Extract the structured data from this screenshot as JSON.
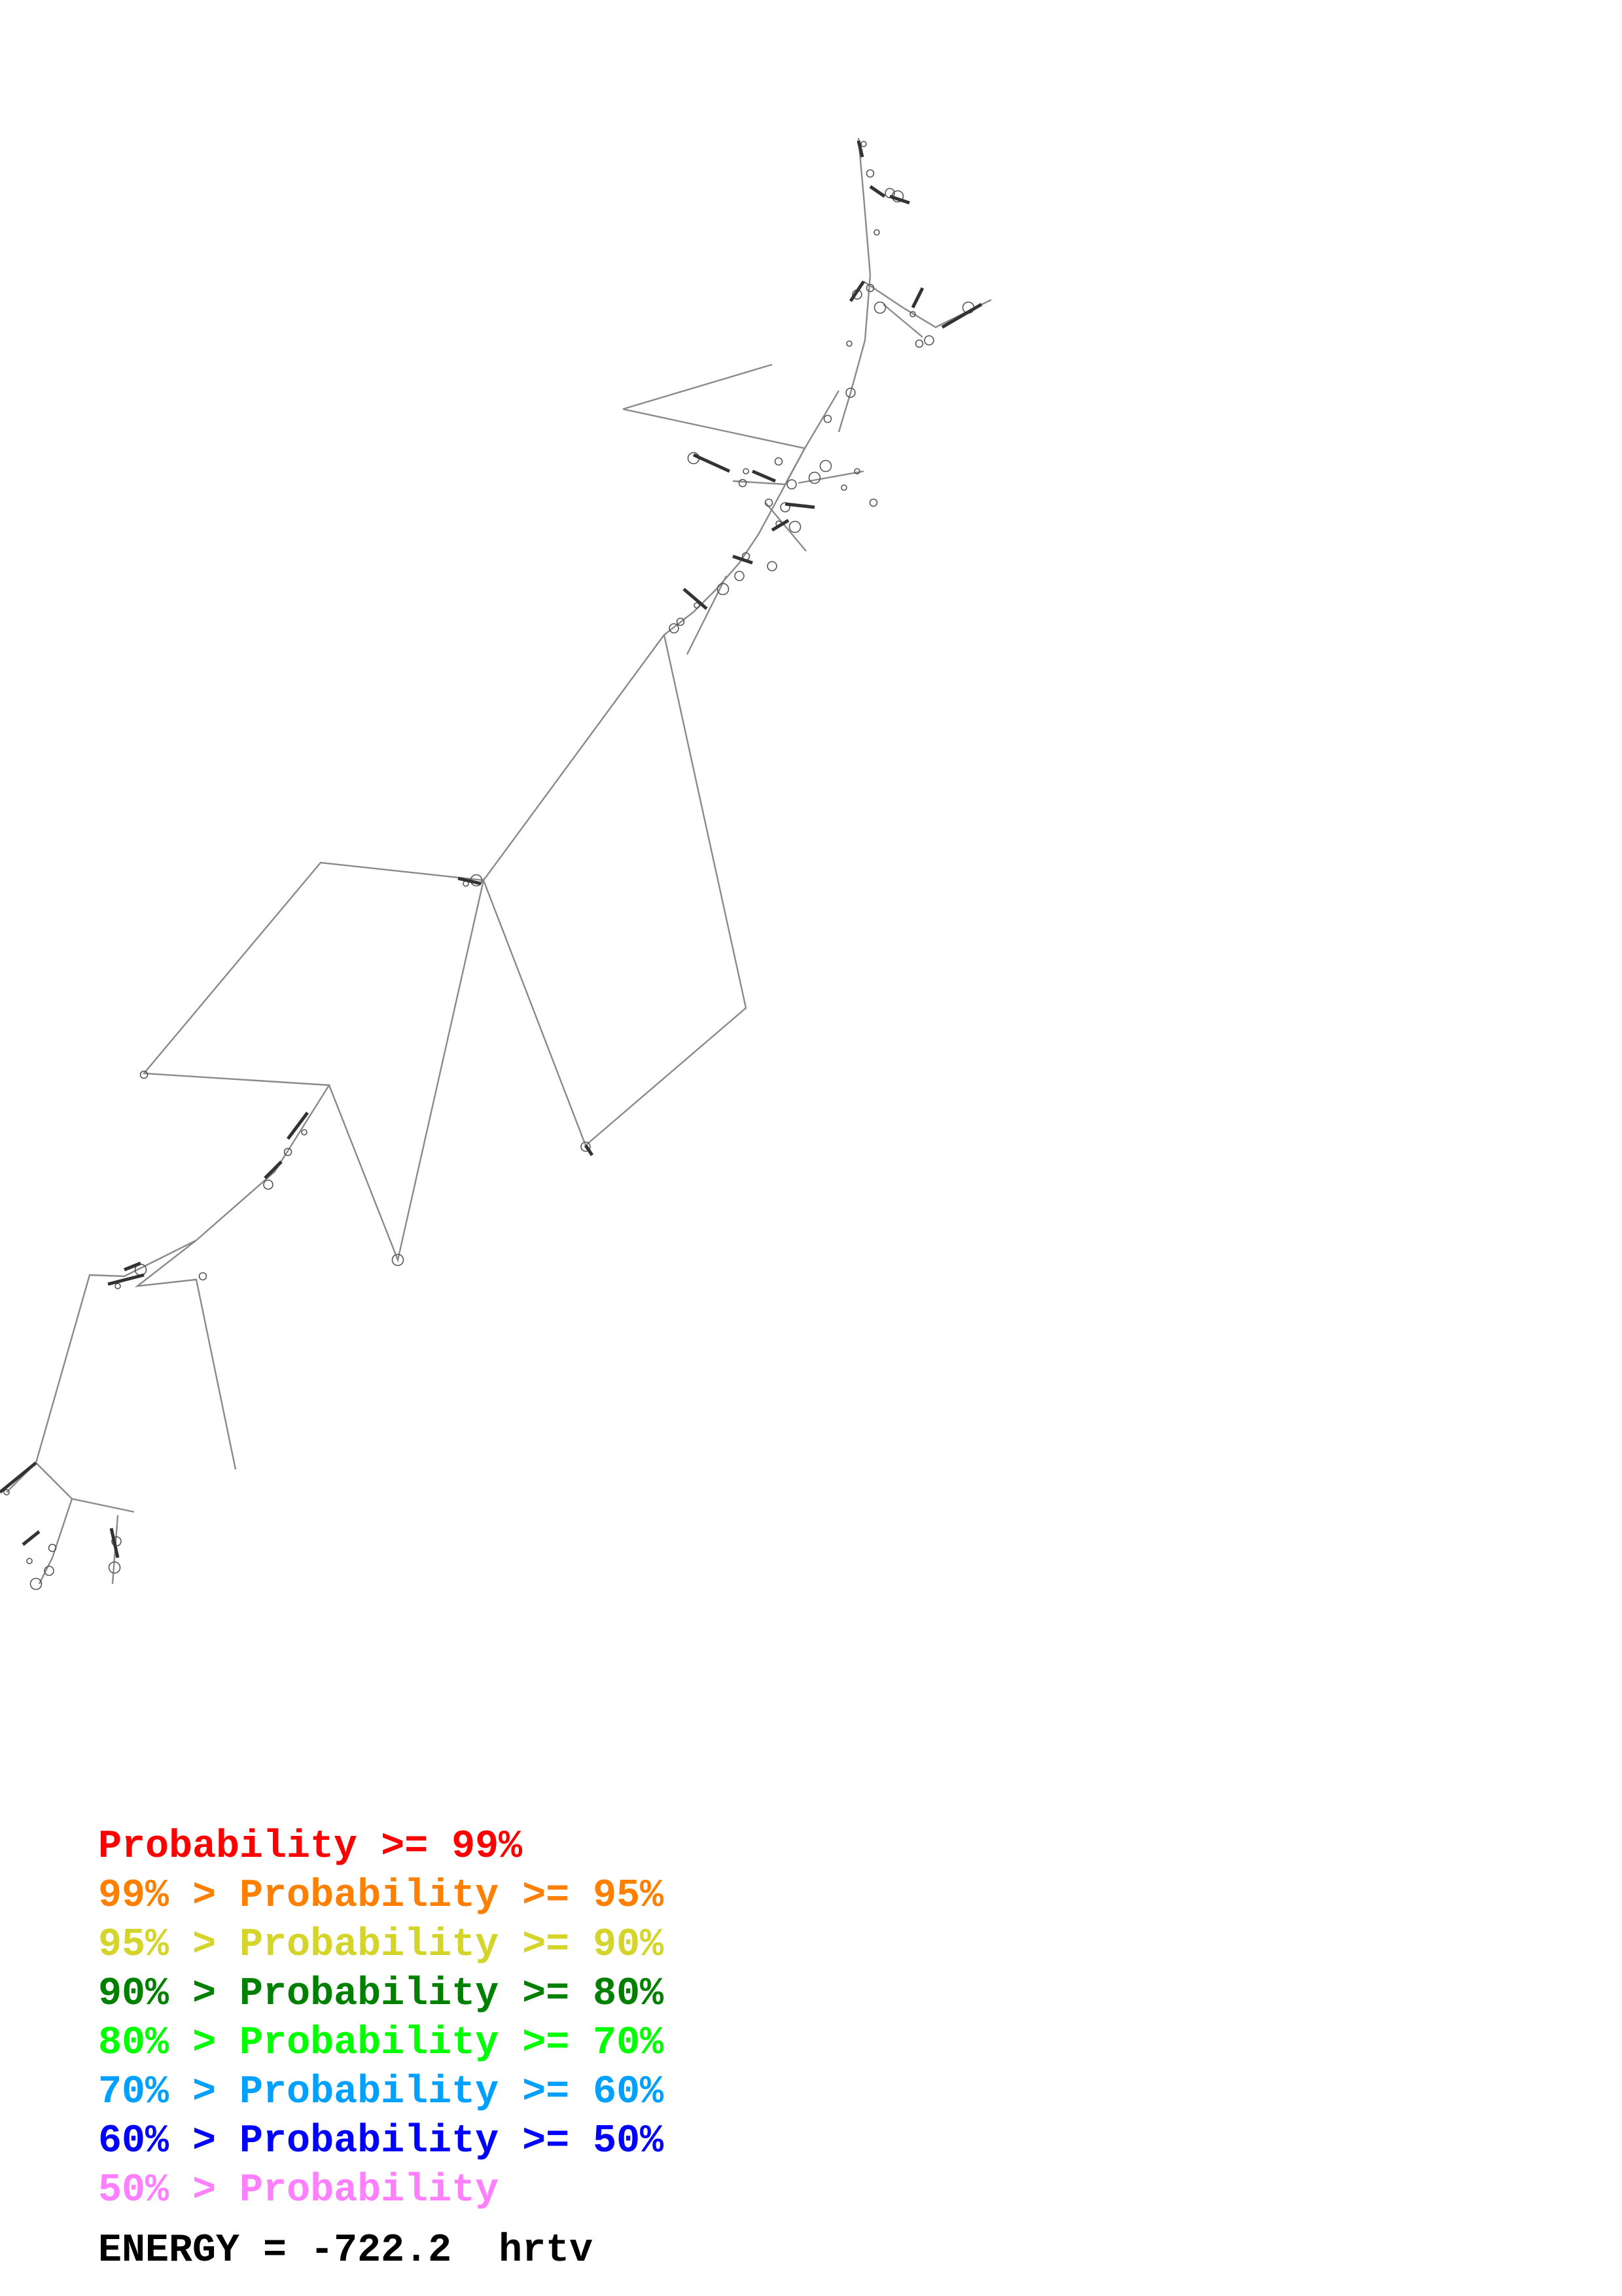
{
  "legend": [
    {
      "prefix": "",
      "label": "Probability",
      "suffix": " >= 99%",
      "color": "#ff0000"
    },
    {
      "prefix": "99% > ",
      "label": "Probability",
      "suffix": " >= 95%",
      "color": "#ff8000"
    },
    {
      "prefix": "95% > ",
      "label": "Probability",
      "suffix": " >= 90%",
      "color": "#d4d42a"
    },
    {
      "prefix": "90% > ",
      "label": "Probability",
      "suffix": " >= 80%",
      "color": "#008000"
    },
    {
      "prefix": "80% > ",
      "label": "Probability",
      "suffix": " >= 70%",
      "color": "#00ff00"
    },
    {
      "prefix": "70% > ",
      "label": "Probability",
      "suffix": " >= 60%",
      "color": "#00a0ff"
    },
    {
      "prefix": "60% > ",
      "label": "Probability",
      "suffix": " >= 50%",
      "color": "#0000ff"
    },
    {
      "prefix": "50% > ",
      "label": "Probability",
      "suffix": "",
      "color": "#ff80ff"
    }
  ],
  "energy": {
    "label": "ENERGY",
    "value": "-722.2",
    "name": "hrtv"
  }
}
